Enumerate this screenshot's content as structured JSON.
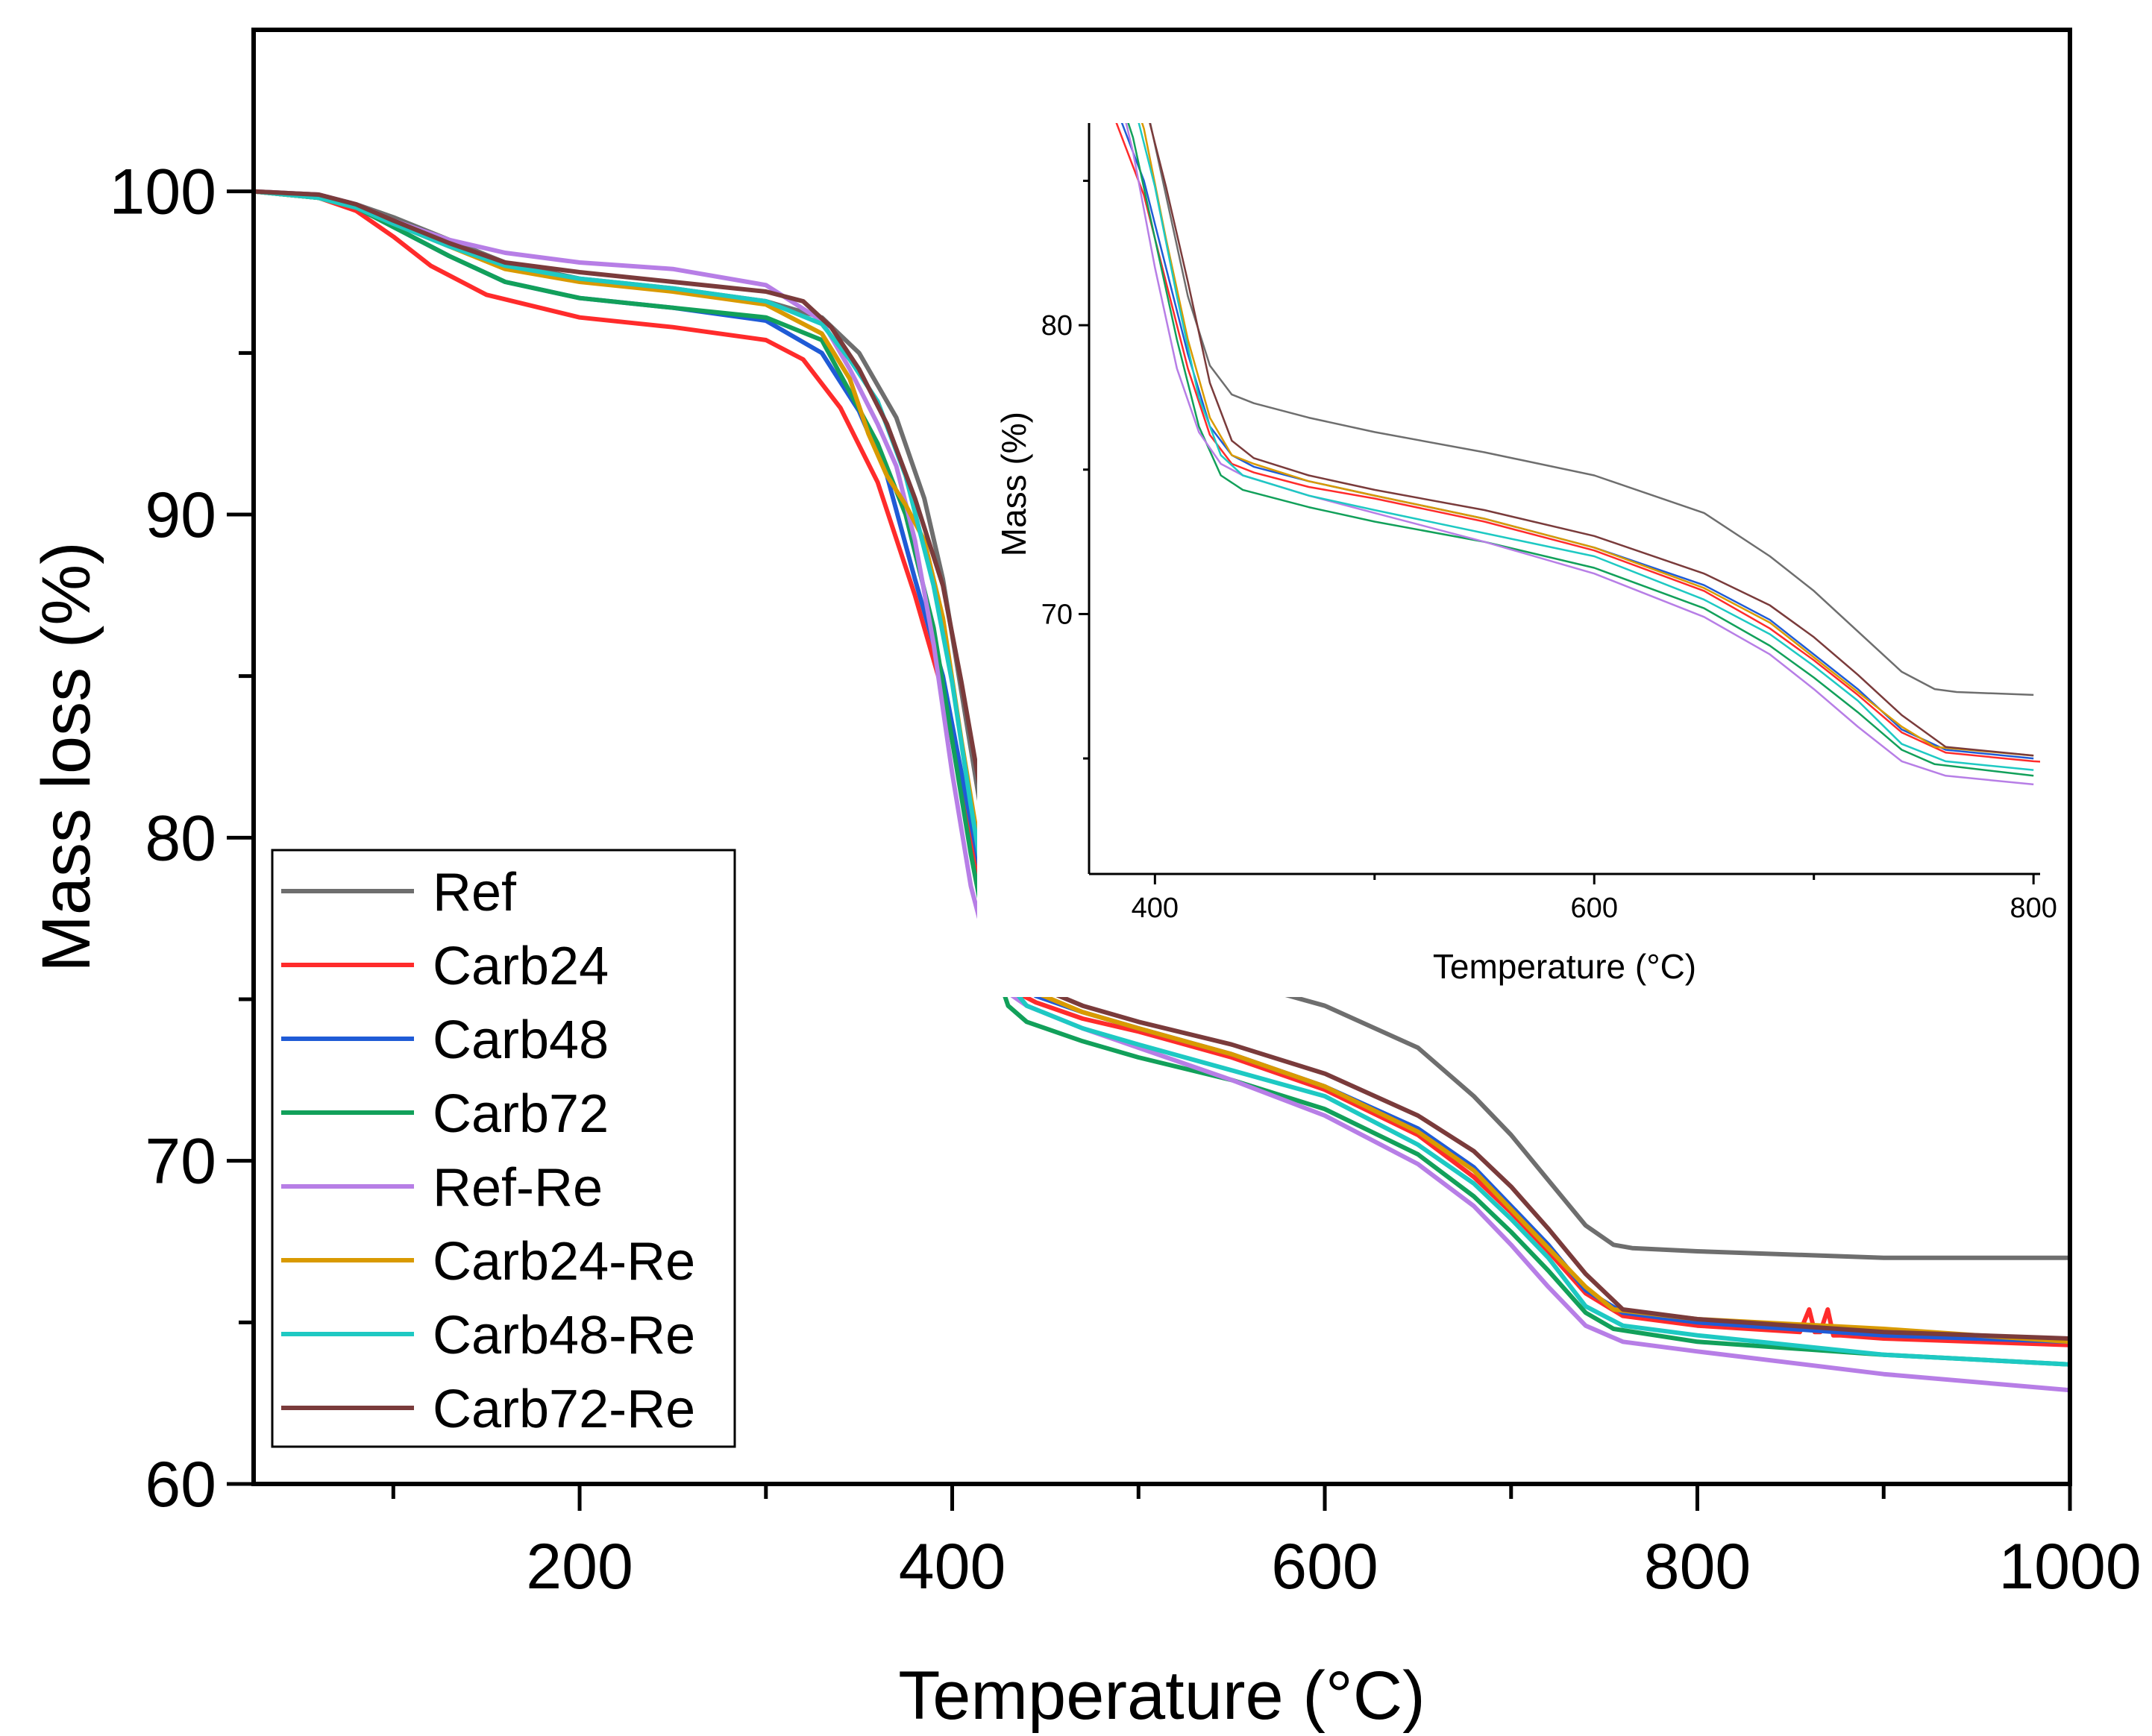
{
  "chart_data": [
    {
      "id": "main",
      "type": "line",
      "xlabel": "Temperature (°C)",
      "ylabel": "Mass loss (%)",
      "xlim": [
        25,
        1000
      ],
      "ylim": [
        60,
        105
      ],
      "xticks": [
        200,
        400,
        600,
        800,
        1000
      ],
      "xminor": [
        100,
        300,
        500,
        700,
        900
      ],
      "yticks": [
        60,
        70,
        80,
        90,
        100
      ],
      "yminor": [
        65,
        75,
        85,
        95
      ],
      "legend_position": "bottom-left",
      "series": [
        {
          "name": "Ref",
          "color": "#6e6e6e",
          "x": [
            25,
            60,
            80,
            100,
            130,
            160,
            200,
            250,
            300,
            330,
            350,
            370,
            385,
            395,
            405,
            415,
            425,
            435,
            445,
            470,
            500,
            550,
            600,
            650,
            680,
            700,
            720,
            740,
            755,
            765,
            800,
            900,
            1000
          ],
          "y": [
            100,
            99.9,
            99.6,
            99.2,
            98.5,
            97.8,
            97.3,
            97.0,
            96.6,
            96.1,
            95.0,
            93.0,
            90.5,
            88.0,
            84.5,
            81.0,
            78.6,
            77.6,
            77.3,
            76.8,
            76.3,
            75.6,
            74.8,
            73.5,
            72.0,
            70.8,
            69.4,
            68.0,
            67.4,
            67.3,
            67.2,
            67.0,
            67.0
          ]
        },
        {
          "name": "Carb24",
          "color": "#ff2b2b",
          "x": [
            25,
            60,
            80,
            100,
            120,
            150,
            200,
            250,
            300,
            320,
            340,
            360,
            380,
            395,
            405,
            415,
            425,
            435,
            445,
            470,
            500,
            550,
            600,
            650,
            680,
            700,
            720,
            740,
            760,
            800,
            855,
            860,
            863,
            866,
            870,
            873,
            877,
            900,
            1000
          ],
          "y": [
            100,
            99.8,
            99.4,
            98.6,
            97.7,
            96.8,
            96.1,
            95.8,
            95.4,
            94.8,
            93.3,
            91.0,
            87.5,
            84.5,
            81.5,
            78.5,
            76.2,
            75.2,
            74.9,
            74.4,
            74.0,
            73.2,
            72.2,
            70.8,
            69.5,
            68.4,
            67.2,
            65.9,
            65.2,
            64.9,
            64.7,
            65.4,
            64.7,
            64.7,
            65.4,
            64.6,
            64.6,
            64.5,
            64.3
          ]
        },
        {
          "name": "Carb48",
          "color": "#1f5bd6",
          "x": [
            25,
            60,
            80,
            100,
            130,
            160,
            200,
            250,
            300,
            330,
            350,
            365,
            380,
            395,
            405,
            415,
            425,
            435,
            445,
            470,
            500,
            550,
            600,
            650,
            680,
            700,
            720,
            740,
            760,
            800,
            900,
            1000
          ],
          "y": [
            100,
            99.8,
            99.5,
            98.9,
            98.0,
            97.2,
            96.7,
            96.4,
            96.0,
            95.0,
            93.2,
            91.2,
            88.0,
            85.0,
            82.0,
            79.0,
            76.5,
            75.5,
            75.1,
            74.6,
            74.1,
            73.3,
            72.3,
            71.0,
            69.8,
            68.6,
            67.4,
            66.0,
            65.3,
            65.0,
            64.6,
            64.4
          ]
        },
        {
          "name": "Carb72",
          "color": "#12a05a",
          "x": [
            25,
            60,
            80,
            100,
            130,
            160,
            200,
            250,
            300,
            330,
            345,
            360,
            375,
            390,
            400,
            410,
            420,
            430,
            440,
            470,
            500,
            550,
            600,
            650,
            680,
            700,
            720,
            740,
            755,
            800,
            900,
            1000
          ],
          "y": [
            100,
            99.8,
            99.5,
            98.9,
            98.0,
            97.2,
            96.7,
            96.4,
            96.1,
            95.4,
            93.8,
            92.2,
            90.0,
            86.5,
            83.0,
            79.5,
            76.5,
            74.8,
            74.3,
            73.7,
            73.2,
            72.5,
            71.6,
            70.2,
            68.9,
            67.8,
            66.6,
            65.3,
            64.8,
            64.4,
            64.0,
            63.7
          ]
        },
        {
          "name": "Ref-Re",
          "color": "#b77ee6",
          "x": [
            25,
            60,
            80,
            100,
            130,
            160,
            200,
            250,
            300,
            330,
            345,
            360,
            370,
            380,
            390,
            400,
            410,
            420,
            430,
            440,
            470,
            500,
            550,
            600,
            650,
            680,
            700,
            720,
            740,
            760,
            800,
            900,
            1000
          ],
          "y": [
            100,
            99.9,
            99.6,
            99.1,
            98.5,
            98.1,
            97.8,
            97.6,
            97.1,
            96.0,
            94.5,
            92.8,
            91.5,
            89.2,
            86.0,
            82.0,
            78.5,
            76.3,
            75.2,
            74.8,
            74.1,
            73.5,
            72.5,
            71.4,
            69.9,
            68.6,
            67.4,
            66.1,
            64.9,
            64.4,
            64.1,
            63.4,
            62.9
          ]
        },
        {
          "name": "Carb24-Re",
          "color": "#d99a00",
          "x": [
            25,
            60,
            80,
            100,
            130,
            160,
            200,
            250,
            300,
            330,
            345,
            355,
            365,
            375,
            385,
            395,
            405,
            415,
            425,
            435,
            445,
            470,
            500,
            550,
            600,
            650,
            680,
            700,
            720,
            740,
            755,
            800,
            900,
            1000
          ],
          "y": [
            100,
            99.8,
            99.5,
            99.0,
            98.3,
            97.6,
            97.2,
            96.9,
            96.5,
            95.6,
            94.2,
            92.5,
            91.2,
            90.3,
            89.2,
            86.8,
            83.0,
            79.5,
            76.8,
            75.5,
            75.2,
            74.6,
            74.1,
            73.3,
            72.3,
            70.9,
            69.7,
            68.5,
            67.3,
            66.1,
            65.4,
            65.1,
            64.8,
            64.4
          ]
        },
        {
          "name": "Carb48-Re",
          "color": "#1ec9c3",
          "x": [
            25,
            60,
            80,
            100,
            130,
            160,
            200,
            250,
            300,
            330,
            345,
            360,
            375,
            390,
            400,
            410,
            420,
            430,
            440,
            470,
            500,
            550,
            600,
            650,
            680,
            700,
            720,
            740,
            760,
            800,
            900,
            1000
          ],
          "y": [
            100,
            99.8,
            99.5,
            99.0,
            98.3,
            97.7,
            97.3,
            97.0,
            96.6,
            95.9,
            94.8,
            93.5,
            91.2,
            87.8,
            84.8,
            81.0,
            77.5,
            75.5,
            74.8,
            74.1,
            73.6,
            72.8,
            72.0,
            70.5,
            69.3,
            68.2,
            67.0,
            65.5,
            64.9,
            64.6,
            64.0,
            63.7
          ]
        },
        {
          "name": "Carb72-Re",
          "color": "#7a3b3b",
          "x": [
            25,
            60,
            80,
            100,
            130,
            160,
            200,
            250,
            300,
            320,
            335,
            350,
            365,
            380,
            395,
            405,
            415,
            425,
            435,
            445,
            470,
            500,
            550,
            600,
            650,
            680,
            700,
            720,
            740,
            760,
            800,
            900,
            1000
          ],
          "y": [
            100,
            99.9,
            99.6,
            99.1,
            98.4,
            97.8,
            97.5,
            97.2,
            96.9,
            96.6,
            95.8,
            94.5,
            92.8,
            90.5,
            87.8,
            84.8,
            81.5,
            78.0,
            76.0,
            75.4,
            74.8,
            74.3,
            73.6,
            72.7,
            71.4,
            70.3,
            69.2,
            67.9,
            66.5,
            65.4,
            65.1,
            64.7,
            64.5
          ]
        }
      ]
    },
    {
      "id": "inset",
      "type": "line",
      "xlabel": "Temperature (°C)",
      "ylabel": "Mass (%)",
      "xlim": [
        370,
        803
      ],
      "ylim": [
        61,
        87
      ],
      "xticks": [
        400,
        600,
        800
      ],
      "xminor": [
        500,
        700
      ],
      "yticks": [
        70,
        80
      ],
      "yminor": [
        65,
        75,
        85
      ],
      "note": "zoomed view of the same eight series"
    }
  ]
}
